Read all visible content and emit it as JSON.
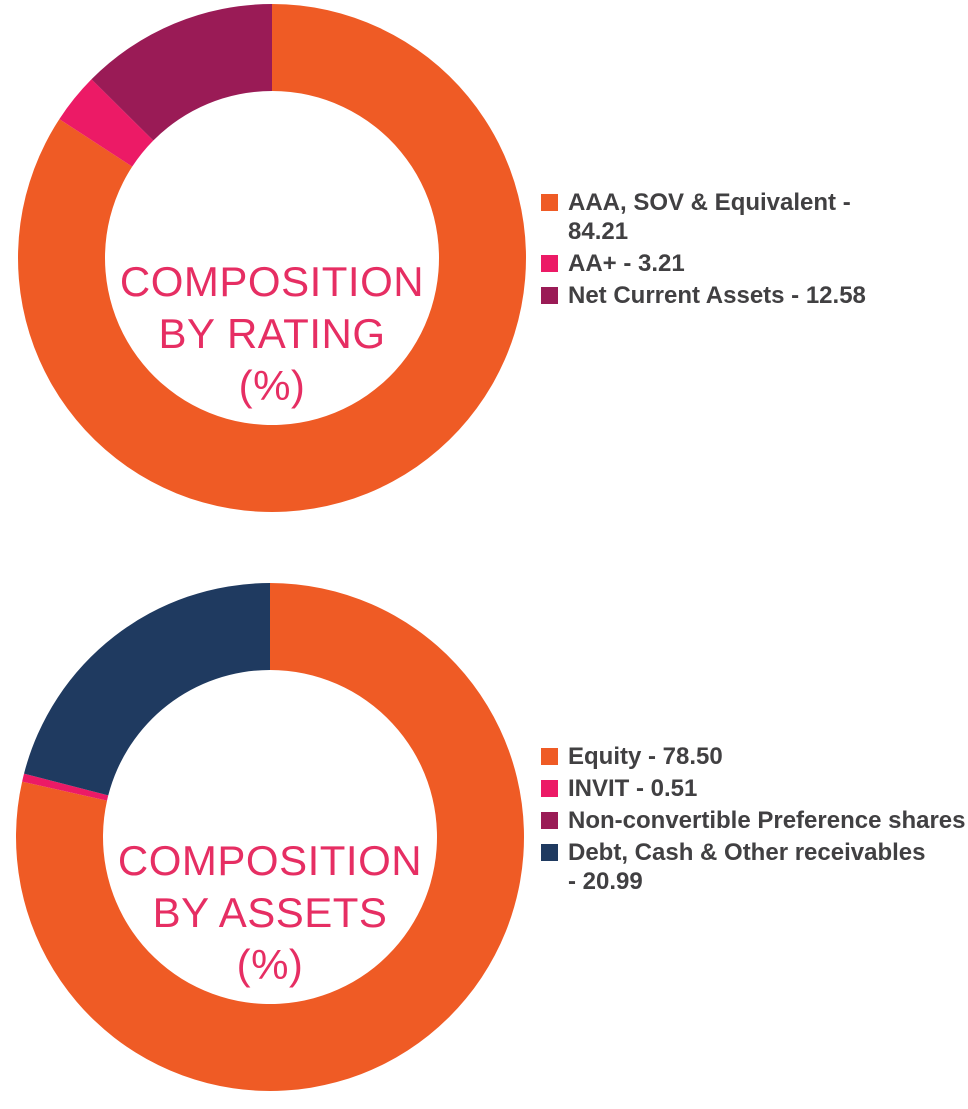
{
  "page": {
    "background": "#ffffff",
    "text_color": "#414042",
    "title_color": "#e62e63"
  },
  "charts": [
    {
      "id": "composition-by-rating",
      "center_lines": [
        "COMPOSITION",
        "BY RATING",
        "(%)"
      ],
      "legend": [
        {
          "color": "#ef5b25",
          "lines": [
            "AAA, SOV & Equivalent -",
            "84.21"
          ]
        },
        {
          "color": "#ec1a66",
          "lines": [
            "AA+ - 3.21"
          ]
        },
        {
          "color": "#9a1b56",
          "lines": [
            "Net Current Assets - 12.58"
          ]
        }
      ]
    },
    {
      "id": "composition-by-assets",
      "center_lines": [
        "COMPOSITION",
        "BY ASSETS",
        "(%)"
      ],
      "legend": [
        {
          "color": "#ef5b25",
          "lines": [
            "Equity - 78.50"
          ]
        },
        {
          "color": "#ec1a66",
          "lines": [
            "INVIT - 0.51"
          ]
        },
        {
          "color": "#9a1b56",
          "lines": [
            "Non-convertible Preference shares"
          ]
        },
        {
          "color": "#1f3a60",
          "lines": [
            "Debt, Cash & Other receivables",
            "- 20.99"
          ]
        }
      ]
    }
  ],
  "chart_data": [
    {
      "type": "pie",
      "subtype": "donut",
      "title": "COMPOSITION BY RATING (%)",
      "labels": [
        "AAA, SOV & Equivalent",
        "AA+",
        "Net Current Assets"
      ],
      "values": [
        84.21,
        3.21,
        12.58
      ],
      "colors": [
        "#ef5b25",
        "#ec1a66",
        "#9a1b56"
      ],
      "start_angle_deg": 0,
      "direction": "clockwise",
      "inner_radius_ratio": 0.657,
      "legend_position": "right",
      "legend_format": "label - value"
    },
    {
      "type": "pie",
      "subtype": "donut",
      "title": "COMPOSITION BY ASSETS (%)",
      "labels": [
        "Equity",
        "INVIT",
        "Non-convertible Preference shares",
        "Debt, Cash & Other receivables"
      ],
      "values": [
        78.5,
        0.51,
        null,
        20.99
      ],
      "colors": [
        "#ef5b25",
        "#ec1a66",
        "#9a1b56",
        "#1f3a60"
      ],
      "start_angle_deg": 0,
      "direction": "clockwise",
      "inner_radius_ratio": 0.657,
      "legend_position": "right",
      "legend_format": "label - value",
      "note": "Non-convertible Preference shares value is clipped at the right image edge; its slice is not visible in the donut"
    }
  ]
}
